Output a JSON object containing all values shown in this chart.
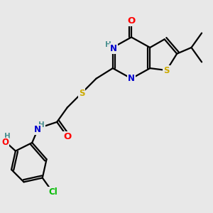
{
  "background_color": "#e8e8e8",
  "atom_colors": {
    "C": "#000000",
    "N": "#0000cd",
    "O": "#ff0000",
    "S": "#ccaa00",
    "Cl": "#00bb00",
    "H": "#4a9090"
  },
  "bond_color": "#000000",
  "bond_width": 1.6,
  "font_size": 8.5,
  "fig_size": [
    3.0,
    3.0
  ],
  "dpi": 100
}
